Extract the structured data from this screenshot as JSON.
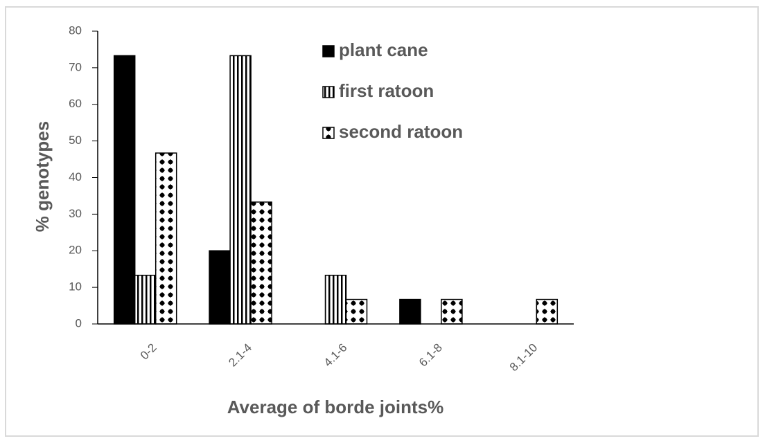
{
  "chart_data": {
    "type": "bar",
    "x_label": "Average of borde joints%",
    "y_label": "% genotypes",
    "categories": [
      "0-2",
      "2.1-4",
      "4.1-6",
      "6.1-8",
      "8.1-10"
    ],
    "series": [
      {
        "name": "plant cane",
        "color": "#000000",
        "pattern": "solid",
        "values": [
          73.3,
          20,
          0,
          6.7,
          0
        ]
      },
      {
        "name": "first ratoon",
        "color": "#000000",
        "pattern": "vertical-lines",
        "values": [
          13.3,
          73.3,
          13.3,
          0,
          0
        ]
      },
      {
        "name": "second ratoon",
        "color": "#000000",
        "pattern": "dots",
        "values": [
          46.7,
          33.3,
          6.7,
          6.7,
          6.7
        ]
      }
    ],
    "ylim": [
      0,
      80
    ],
    "yticks": [
      0,
      10,
      20,
      30,
      40,
      50,
      60,
      70,
      80
    ],
    "grid": false,
    "legend": "top-center"
  }
}
